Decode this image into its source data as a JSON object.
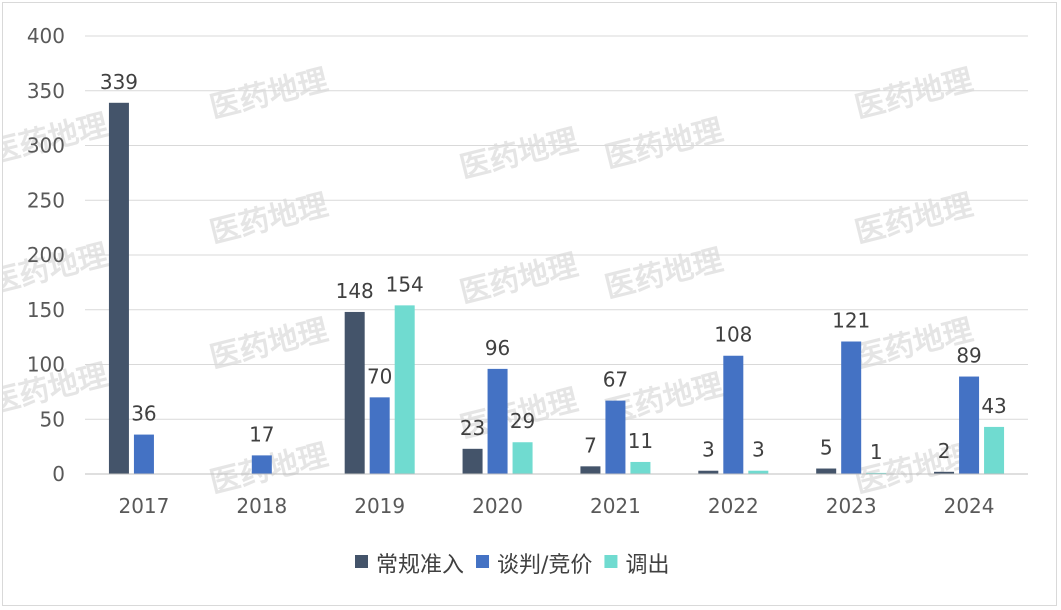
{
  "chart_data": {
    "type": "bar",
    "categories": [
      "2017",
      "2018",
      "2019",
      "2020",
      "2021",
      "2022",
      "2023",
      "2024"
    ],
    "series": [
      {
        "name": "常规准入",
        "color": "#44546a",
        "values": [
          339,
          null,
          148,
          23,
          7,
          3,
          5,
          2
        ]
      },
      {
        "name": "谈判/竞价",
        "color": "#4472c4",
        "values": [
          36,
          17,
          70,
          96,
          67,
          108,
          121,
          89
        ]
      },
      {
        "name": "调出",
        "color": "#70dbd0",
        "values": [
          null,
          null,
          154,
          29,
          11,
          3,
          1,
          43
        ]
      }
    ],
    "ylim": [
      0,
      400
    ],
    "yticks": [
      0,
      50,
      100,
      150,
      200,
      250,
      300,
      350,
      400
    ],
    "grid": true,
    "legend_position": "bottom",
    "watermark": "医药地理"
  }
}
